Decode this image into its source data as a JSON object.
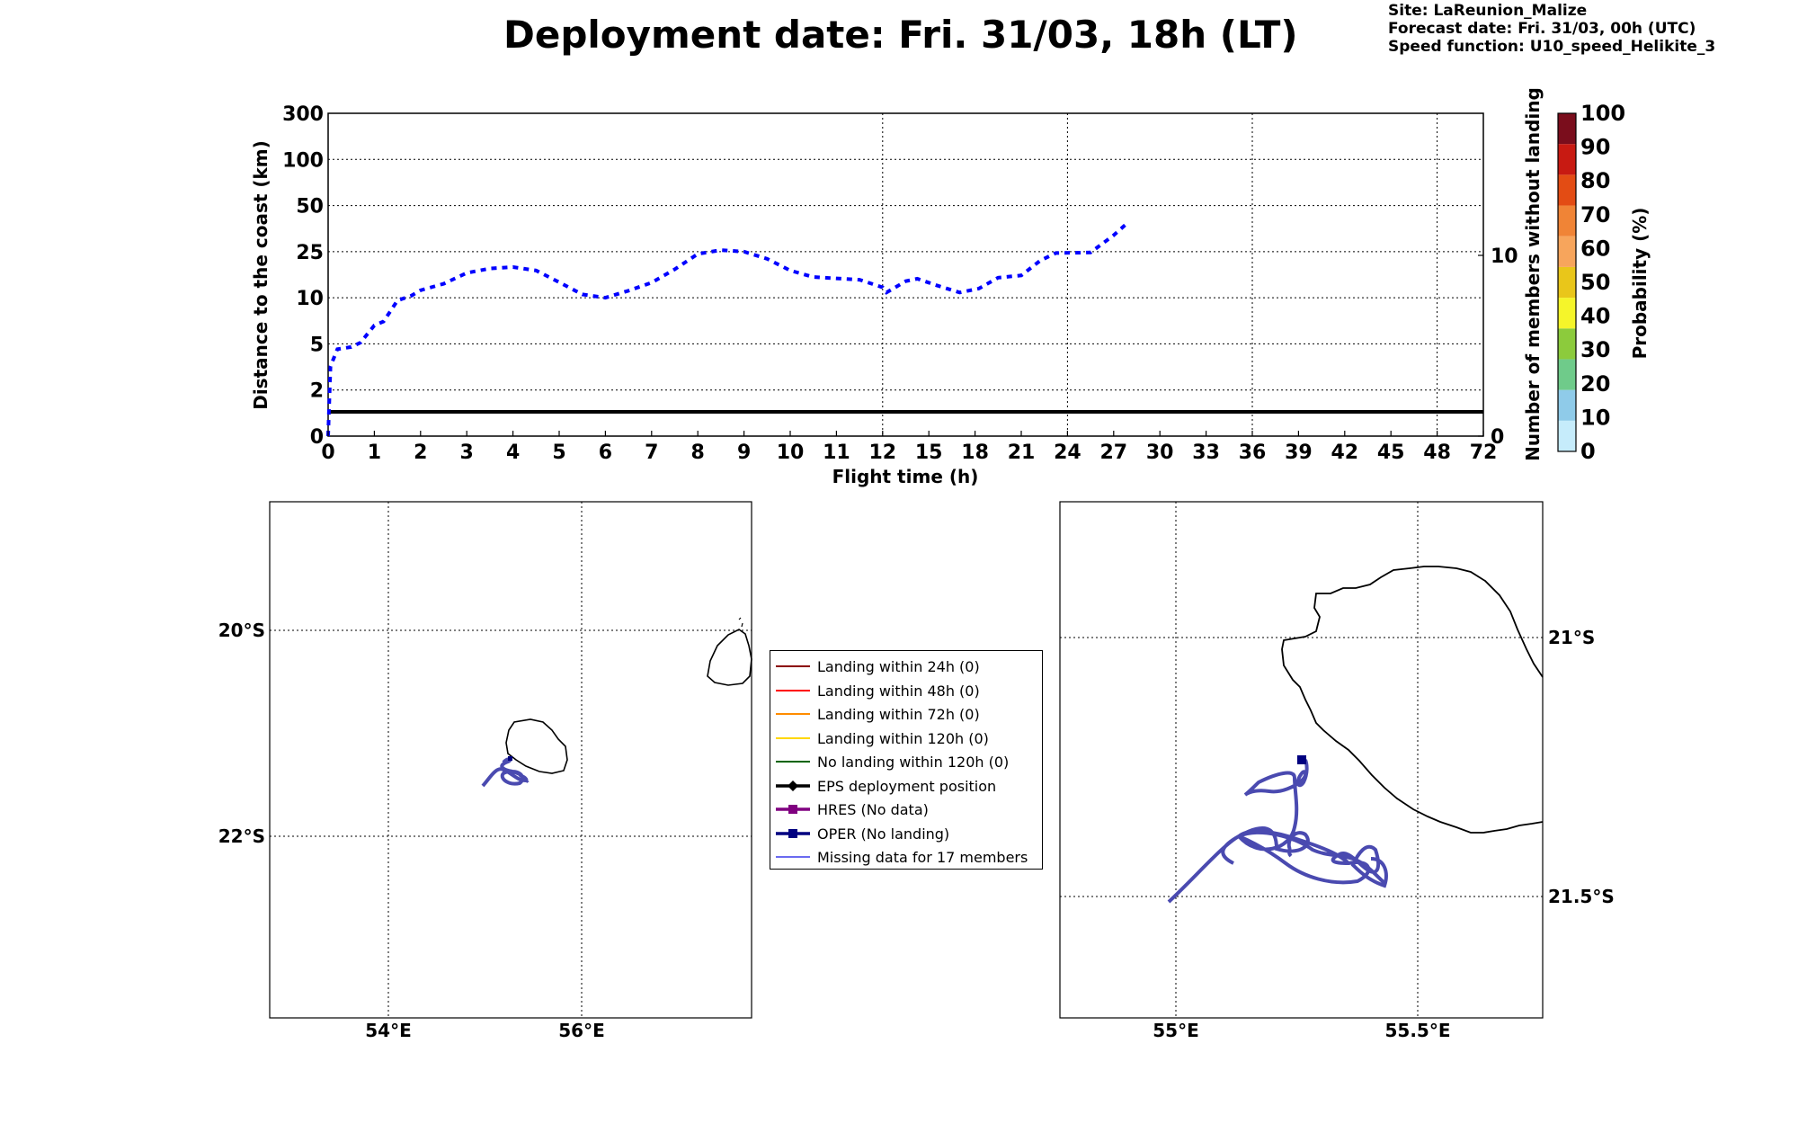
{
  "header": {
    "title": "Deployment date: Fri. 31/03, 18h (LT)",
    "site": "Site: LaReunion_Malize",
    "forecast": "Forecast date: Fri. 31/03, 00h (UTC)",
    "speed": "Speed function: U10_speed_Helikite_3"
  },
  "colorbar": {
    "label": "Probability (%)",
    "ticks": [
      "0",
      "10",
      "20",
      "30",
      "40",
      "50",
      "60",
      "70",
      "80",
      "90",
      "100"
    ],
    "colors": [
      "#c6ecfb",
      "#8fcbe9",
      "#6fcb8a",
      "#8ccb3c",
      "#f5f52a",
      "#e9c61a",
      "#f7a55c",
      "#f08436",
      "#e34c14",
      "#c81a12",
      "#7a0d1c"
    ]
  },
  "chart_data": [
    {
      "type": "line",
      "xlabel": "Flight time (h)",
      "ylabel": "Distance to the coast (km)",
      "y2label": "Number of members without landing",
      "x_ticks": [
        "0",
        "1",
        "2",
        "3",
        "4",
        "5",
        "6",
        "7",
        "8",
        "9",
        "10",
        "11",
        "12",
        "15",
        "18",
        "21",
        "24",
        "27",
        "30",
        "33",
        "36",
        "39",
        "42",
        "45",
        "48",
        "72"
      ],
      "y_ticks": [
        "0",
        "2",
        "5",
        "10",
        "25",
        "50",
        "100",
        "300"
      ],
      "y2_ticks": [
        "0",
        "10"
      ],
      "grid": true,
      "reference_line_km": 1,
      "series": [
        {
          "style": "dashed",
          "color": "#0000ff",
          "points": [
            [
              0,
              0
            ],
            [
              0.05,
              3.2
            ],
            [
              0.2,
              4.5
            ],
            [
              0.5,
              4.7
            ],
            [
              0.7,
              5.1
            ],
            [
              1.0,
              6.6
            ],
            [
              1.2,
              7.0
            ],
            [
              1.5,
              9.6
            ],
            [
              1.8,
              10.4
            ],
            [
              2.0,
              11.6
            ],
            [
              2.5,
              13.2
            ],
            [
              3.0,
              16.4
            ],
            [
              3.5,
              17.9
            ],
            [
              4.0,
              18.4
            ],
            [
              4.5,
              17.2
            ],
            [
              5.0,
              13.6
            ],
            [
              5.5,
              10.7
            ],
            [
              6.0,
              10.0
            ],
            [
              6.5,
              11.5
            ],
            [
              7.0,
              13.5
            ],
            [
              7.5,
              17.6
            ],
            [
              8.0,
              23.9
            ],
            [
              8.5,
              25.6
            ],
            [
              9.0,
              25.0
            ],
            [
              9.5,
              21.7
            ],
            [
              10.0,
              17.2
            ],
            [
              10.5,
              15.1
            ],
            [
              11.0,
              14.7
            ],
            [
              11.5,
              14.3
            ],
            [
              12.0,
              12.3
            ],
            [
              12.25,
              11.1
            ],
            [
              13.5,
              13.9
            ],
            [
              14.25,
              14.6
            ],
            [
              15.5,
              12.8
            ],
            [
              17.0,
              11.1
            ],
            [
              18.25,
              12.0
            ],
            [
              19.5,
              14.9
            ],
            [
              21.0,
              15.6
            ],
            [
              22.25,
              21.0
            ],
            [
              23.25,
              24.3
            ],
            [
              25.5,
              24.6
            ],
            [
              27.0,
              32.0
            ],
            [
              27.75,
              37.4
            ]
          ]
        }
      ]
    },
    {
      "type": "map",
      "x_ticks": [
        "54°E",
        "56°E"
      ],
      "y_ticks": [
        "20°S",
        "22°S"
      ]
    },
    {
      "type": "map",
      "x_ticks": [
        "55°E",
        "55.5°E"
      ],
      "y_ticks": [
        "21°S",
        "21.5°S"
      ]
    }
  ],
  "legend": {
    "items": [
      {
        "label": "Landing within 24h (0)",
        "color": "#8b0000",
        "marker": "none"
      },
      {
        "label": "Landing within 48h (0)",
        "color": "#ff0000",
        "marker": "none"
      },
      {
        "label": "Landing within 72h (0)",
        "color": "#ff8c00",
        "marker": "none"
      },
      {
        "label": "Landing within 120h (0)",
        "color": "#ffd700",
        "marker": "none"
      },
      {
        "label": "No landing within 120h (0)",
        "color": "#006400",
        "marker": "none"
      },
      {
        "label": "EPS deployment position",
        "color": "#000000",
        "marker": "diamond"
      },
      {
        "label": "HRES (No data)",
        "color": "#800080",
        "marker": "square"
      },
      {
        "label": "OPER (No landing)",
        "color": "#000080",
        "marker": "square"
      },
      {
        "label": "Missing data for 17 members",
        "color": "#6a6af0",
        "marker": "none"
      }
    ]
  }
}
